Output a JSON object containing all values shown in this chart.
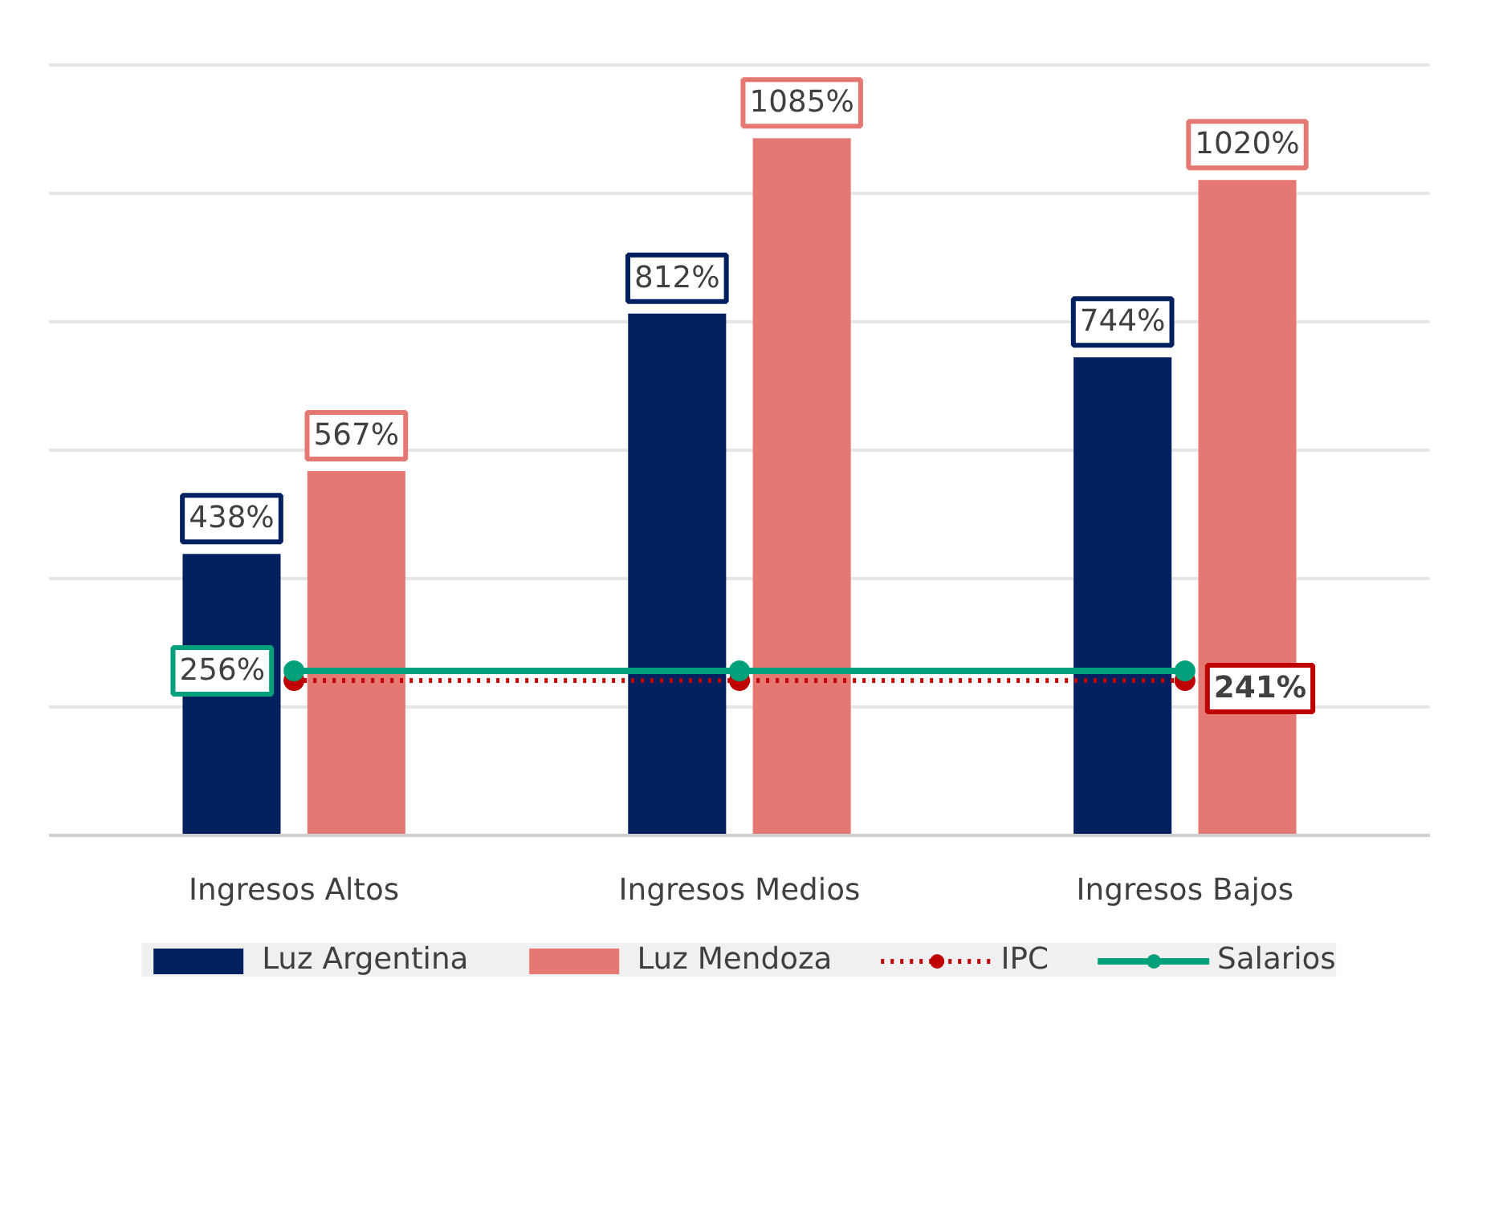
{
  "chart_data": {
    "type": "bar",
    "categories": [
      "Ingresos Altos",
      "Ingresos Medios",
      "Ingresos Bajos"
    ],
    "series": [
      {
        "name": "Luz Argentina",
        "color": "#002060",
        "values": [
          438,
          812,
          744
        ],
        "value_labels": [
          "438%",
          "812%",
          "744%"
        ]
      },
      {
        "name": "Luz Mendoza",
        "color": "#e57872",
        "values": [
          567,
          1085,
          1020
        ],
        "value_labels": [
          "567%",
          "1085%",
          "1020%"
        ]
      },
      {
        "name": "IPC",
        "type": "line",
        "color": "#c00000",
        "values": [
          241,
          241,
          241
        ],
        "line_style": "dotted",
        "marker": "circle",
        "value_labels": [
          null,
          null,
          "241%"
        ]
      },
      {
        "name": "Salarios",
        "type": "line",
        "color": "#00a07a",
        "values": [
          256,
          256,
          256
        ],
        "line_style": "solid",
        "marker": "circle",
        "value_labels": [
          "256%",
          null,
          null
        ]
      }
    ],
    "yticks": [
      {
        "value": 0,
        "label": null
      },
      {
        "value": 200,
        "label": null
      },
      {
        "value": 400,
        "label": null
      },
      {
        "value": 600,
        "label": null
      },
      {
        "value": 800,
        "label": null
      },
      {
        "value": 1000,
        "label": null
      },
      {
        "value": 1200,
        "label": null
      }
    ],
    "grid": "y",
    "tick_labels": "x",
    "legend": "bottom"
  }
}
